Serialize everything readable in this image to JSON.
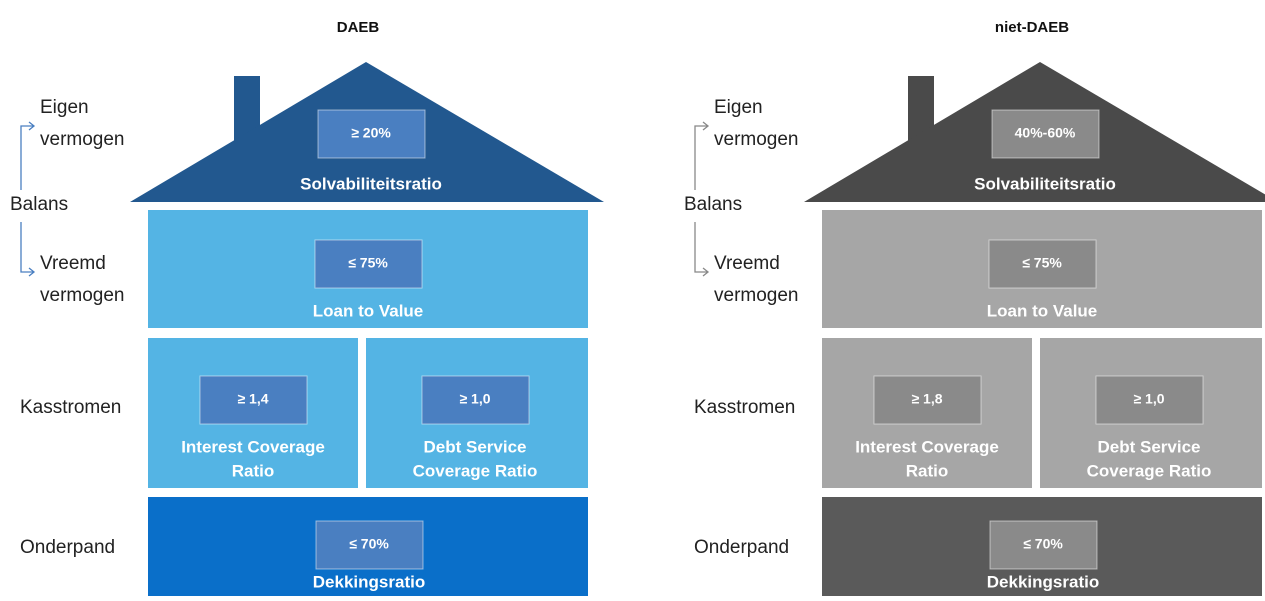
{
  "houses": [
    {
      "title": "DAEB",
      "side_labels": {
        "equity": [
          "Eigen",
          "vermogen"
        ],
        "balance": "Balans",
        "debt": [
          "Vreemd",
          "vermogen"
        ],
        "cashflow": "Kasstromen",
        "collateral": "Onderpand"
      },
      "solvency": {
        "value": "≥ 20%",
        "label": [
          "Solvabiliteitsratio"
        ]
      },
      "ltv": {
        "value": "≤ 75%",
        "label": [
          "Loan to Value"
        ]
      },
      "icr": {
        "value": "≥ 1,4",
        "label": [
          "Interest Coverage",
          "Ratio"
        ]
      },
      "dscr": {
        "value": "≥ 1,0",
        "label": [
          "Debt Service",
          "Coverage Ratio"
        ]
      },
      "collateral": {
        "value": "≤ 70%",
        "label": [
          "Dekkingsratio"
        ]
      }
    },
    {
      "title": "niet-DAEB",
      "side_labels": {
        "equity": [
          "Eigen",
          "vermogen"
        ],
        "balance": "Balans",
        "debt": [
          "Vreemd",
          "vermogen"
        ],
        "cashflow": "Kasstromen",
        "collateral": "Onderpand"
      },
      "solvency": {
        "value": "40%-60%",
        "label": [
          "Solvabiliteitsratio"
        ]
      },
      "ltv": {
        "value": "≤ 75%",
        "label": [
          "Loan to Value"
        ]
      },
      "icr": {
        "value": "≥ 1,8",
        "label": [
          "Interest Coverage",
          "Ratio"
        ]
      },
      "dscr": {
        "value": "≥ 1,0",
        "label": [
          "Debt Service",
          "Coverage Ratio"
        ]
      },
      "collateral": {
        "value": "≤ 70%",
        "label": [
          "Dekkingsratio"
        ]
      }
    }
  ]
}
